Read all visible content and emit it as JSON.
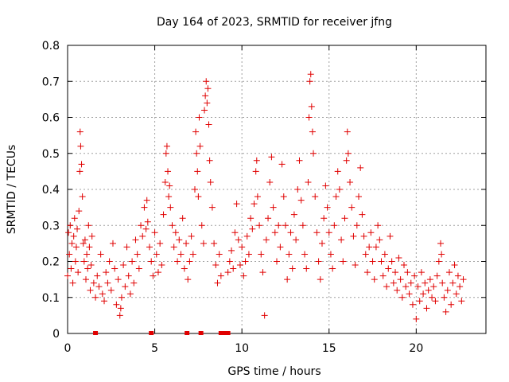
{
  "chart_data": {
    "type": "scatter",
    "title": "Day 164 of 2023, SRMTID for receiver jfng",
    "xlabel": "GPS time / hours",
    "ylabel": "SRMTID / TECUs",
    "xlim": [
      0,
      24
    ],
    "ylim": [
      0,
      0.8
    ],
    "x_ticks": [
      0,
      5,
      10,
      15,
      20
    ],
    "y_ticks": [
      0,
      0.1,
      0.2,
      0.3,
      0.4,
      0.5,
      0.6,
      0.7,
      0.8
    ],
    "grid": true,
    "marker": "+",
    "color": "#e00000",
    "points": [
      [
        0.0,
        0.16
      ],
      [
        0.05,
        0.28
      ],
      [
        0.1,
        0.22
      ],
      [
        0.15,
        0.3
      ],
      [
        0.2,
        0.18
      ],
      [
        0.25,
        0.25
      ],
      [
        0.3,
        0.14
      ],
      [
        0.35,
        0.27
      ],
      [
        0.4,
        0.32
      ],
      [
        0.45,
        0.2
      ],
      [
        0.5,
        0.24
      ],
      [
        0.55,
        0.29
      ],
      [
        0.6,
        0.17
      ],
      [
        0.65,
        0.34
      ],
      [
        0.7,
        0.45
      ],
      [
        0.72,
        0.56
      ],
      [
        0.75,
        0.52
      ],
      [
        0.8,
        0.47
      ],
      [
        0.85,
        0.38
      ],
      [
        0.9,
        0.25
      ],
      [
        0.95,
        0.2
      ],
      [
        1.0,
        0.26
      ],
      [
        1.05,
        0.15
      ],
      [
        1.1,
        0.22
      ],
      [
        1.15,
        0.18
      ],
      [
        1.2,
        0.3
      ],
      [
        1.25,
        0.24
      ],
      [
        1.3,
        0.12
      ],
      [
        1.35,
        0.19
      ],
      [
        1.4,
        0.27
      ],
      [
        1.5,
        0.14
      ],
      [
        1.6,
        0.1
      ],
      [
        1.7,
        0.16
      ],
      [
        1.8,
        0.13
      ],
      [
        1.9,
        0.22
      ],
      [
        2.0,
        0.11
      ],
      [
        2.1,
        0.09
      ],
      [
        2.2,
        0.17
      ],
      [
        2.3,
        0.14
      ],
      [
        2.4,
        0.2
      ],
      [
        2.5,
        0.12
      ],
      [
        2.6,
        0.25
      ],
      [
        2.7,
        0.18
      ],
      [
        2.8,
        0.08
      ],
      [
        2.9,
        0.15
      ],
      [
        3.0,
        0.05
      ],
      [
        3.05,
        0.07
      ],
      [
        3.1,
        0.1
      ],
      [
        3.2,
        0.19
      ],
      [
        3.3,
        0.13
      ],
      [
        3.4,
        0.24
      ],
      [
        3.5,
        0.16
      ],
      [
        3.6,
        0.11
      ],
      [
        3.7,
        0.2
      ],
      [
        3.8,
        0.14
      ],
      [
        3.9,
        0.26
      ],
      [
        4.0,
        0.22
      ],
      [
        4.1,
        0.18
      ],
      [
        4.2,
        0.3
      ],
      [
        4.3,
        0.27
      ],
      [
        4.4,
        0.35
      ],
      [
        4.5,
        0.29
      ],
      [
        4.55,
        0.37
      ],
      [
        4.6,
        0.31
      ],
      [
        4.7,
        0.24
      ],
      [
        4.8,
        0.2
      ],
      [
        4.9,
        0.16
      ],
      [
        5.0,
        0.28
      ],
      [
        5.1,
        0.22
      ],
      [
        5.2,
        0.17
      ],
      [
        5.3,
        0.25
      ],
      [
        5.4,
        0.19
      ],
      [
        5.5,
        0.33
      ],
      [
        5.6,
        0.42
      ],
      [
        5.65,
        0.5
      ],
      [
        5.7,
        0.52
      ],
      [
        5.75,
        0.45
      ],
      [
        5.8,
        0.38
      ],
      [
        5.85,
        0.41
      ],
      [
        5.9,
        0.35
      ],
      [
        6.0,
        0.3
      ],
      [
        6.1,
        0.24
      ],
      [
        6.2,
        0.28
      ],
      [
        6.3,
        0.2
      ],
      [
        6.4,
        0.26
      ],
      [
        6.5,
        0.22
      ],
      [
        6.6,
        0.32
      ],
      [
        6.7,
        0.18
      ],
      [
        6.8,
        0.25
      ],
      [
        6.9,
        0.15
      ],
      [
        7.0,
        0.2
      ],
      [
        7.1,
        0.27
      ],
      [
        7.2,
        0.22
      ],
      [
        7.3,
        0.4
      ],
      [
        7.35,
        0.56
      ],
      [
        7.4,
        0.5
      ],
      [
        7.45,
        0.45
      ],
      [
        7.5,
        0.38
      ],
      [
        7.55,
        0.6
      ],
      [
        7.6,
        0.52
      ],
      [
        7.7,
        0.3
      ],
      [
        7.8,
        0.25
      ],
      [
        7.85,
        0.62
      ],
      [
        7.9,
        0.66
      ],
      [
        7.95,
        0.7
      ],
      [
        8.0,
        0.64
      ],
      [
        8.05,
        0.68
      ],
      [
        8.1,
        0.58
      ],
      [
        8.15,
        0.48
      ],
      [
        8.2,
        0.42
      ],
      [
        8.3,
        0.35
      ],
      [
        8.4,
        0.25
      ],
      [
        8.5,
        0.19
      ],
      [
        8.6,
        0.14
      ],
      [
        8.7,
        0.22
      ],
      [
        8.8,
        0.16
      ],
      [
        9.2,
        0.17
      ],
      [
        9.3,
        0.2
      ],
      [
        9.4,
        0.23
      ],
      [
        9.5,
        0.18
      ],
      [
        9.6,
        0.28
      ],
      [
        9.7,
        0.36
      ],
      [
        9.8,
        0.26
      ],
      [
        9.9,
        0.19
      ],
      [
        10.0,
        0.24
      ],
      [
        10.1,
        0.16
      ],
      [
        10.2,
        0.2
      ],
      [
        10.3,
        0.27
      ],
      [
        10.4,
        0.22
      ],
      [
        10.5,
        0.32
      ],
      [
        10.6,
        0.29
      ],
      [
        10.7,
        0.36
      ],
      [
        10.8,
        0.45
      ],
      [
        10.85,
        0.48
      ],
      [
        10.9,
        0.38
      ],
      [
        11.0,
        0.3
      ],
      [
        11.1,
        0.22
      ],
      [
        11.2,
        0.17
      ],
      [
        11.3,
        0.05
      ],
      [
        11.4,
        0.26
      ],
      [
        11.5,
        0.32
      ],
      [
        11.6,
        0.42
      ],
      [
        11.7,
        0.49
      ],
      [
        11.8,
        0.35
      ],
      [
        11.9,
        0.28
      ],
      [
        12.0,
        0.2
      ],
      [
        12.1,
        0.3
      ],
      [
        12.2,
        0.24
      ],
      [
        12.3,
        0.47
      ],
      [
        12.4,
        0.38
      ],
      [
        12.5,
        0.3
      ],
      [
        12.6,
        0.15
      ],
      [
        12.7,
        0.22
      ],
      [
        12.8,
        0.28
      ],
      [
        12.9,
        0.18
      ],
      [
        13.0,
        0.33
      ],
      [
        13.1,
        0.26
      ],
      [
        13.2,
        0.4
      ],
      [
        13.3,
        0.48
      ],
      [
        13.4,
        0.37
      ],
      [
        13.5,
        0.3
      ],
      [
        13.6,
        0.22
      ],
      [
        13.7,
        0.18
      ],
      [
        13.8,
        0.42
      ],
      [
        13.85,
        0.6
      ],
      [
        13.9,
        0.7
      ],
      [
        13.95,
        0.72
      ],
      [
        14.0,
        0.63
      ],
      [
        14.05,
        0.56
      ],
      [
        14.1,
        0.5
      ],
      [
        14.2,
        0.38
      ],
      [
        14.3,
        0.28
      ],
      [
        14.4,
        0.2
      ],
      [
        14.5,
        0.15
      ],
      [
        14.6,
        0.25
      ],
      [
        14.7,
        0.32
      ],
      [
        14.8,
        0.41
      ],
      [
        14.9,
        0.35
      ],
      [
        15.0,
        0.28
      ],
      [
        15.1,
        0.22
      ],
      [
        15.2,
        0.18
      ],
      [
        15.3,
        0.3
      ],
      [
        15.4,
        0.38
      ],
      [
        15.5,
        0.45
      ],
      [
        15.6,
        0.4
      ],
      [
        15.7,
        0.26
      ],
      [
        15.8,
        0.2
      ],
      [
        15.9,
        0.32
      ],
      [
        16.0,
        0.48
      ],
      [
        16.05,
        0.56
      ],
      [
        16.1,
        0.5
      ],
      [
        16.2,
        0.42
      ],
      [
        16.3,
        0.35
      ],
      [
        16.4,
        0.27
      ],
      [
        16.5,
        0.19
      ],
      [
        16.6,
        0.3
      ],
      [
        16.7,
        0.38
      ],
      [
        16.8,
        0.46
      ],
      [
        16.9,
        0.33
      ],
      [
        17.0,
        0.27
      ],
      [
        17.1,
        0.22
      ],
      [
        17.2,
        0.17
      ],
      [
        17.3,
        0.24
      ],
      [
        17.4,
        0.28
      ],
      [
        17.5,
        0.2
      ],
      [
        17.6,
        0.15
      ],
      [
        17.7,
        0.24
      ],
      [
        17.8,
        0.3
      ],
      [
        17.9,
        0.26
      ],
      [
        18.0,
        0.2
      ],
      [
        18.1,
        0.16
      ],
      [
        18.2,
        0.22
      ],
      [
        18.3,
        0.13
      ],
      [
        18.4,
        0.18
      ],
      [
        18.5,
        0.27
      ],
      [
        18.6,
        0.2
      ],
      [
        18.7,
        0.14
      ],
      [
        18.8,
        0.17
      ],
      [
        18.9,
        0.12
      ],
      [
        19.0,
        0.21
      ],
      [
        19.1,
        0.15
      ],
      [
        19.2,
        0.1
      ],
      [
        19.3,
        0.19
      ],
      [
        19.4,
        0.13
      ],
      [
        19.5,
        0.17
      ],
      [
        19.6,
        0.11
      ],
      [
        19.7,
        0.14
      ],
      [
        19.8,
        0.08
      ],
      [
        19.9,
        0.16
      ],
      [
        20.0,
        0.04
      ],
      [
        20.1,
        0.13
      ],
      [
        20.2,
        0.09
      ],
      [
        20.3,
        0.17
      ],
      [
        20.4,
        0.11
      ],
      [
        20.5,
        0.14
      ],
      [
        20.6,
        0.07
      ],
      [
        20.7,
        0.12
      ],
      [
        20.8,
        0.15
      ],
      [
        20.9,
        0.1
      ],
      [
        21.0,
        0.13
      ],
      [
        21.1,
        0.09
      ],
      [
        21.2,
        0.16
      ],
      [
        21.3,
        0.2
      ],
      [
        21.4,
        0.25
      ],
      [
        21.45,
        0.22
      ],
      [
        21.5,
        0.14
      ],
      [
        21.6,
        0.1
      ],
      [
        21.7,
        0.06
      ],
      [
        21.8,
        0.12
      ],
      [
        21.9,
        0.17
      ],
      [
        22.0,
        0.08
      ],
      [
        22.1,
        0.14
      ],
      [
        22.2,
        0.19
      ],
      [
        22.3,
        0.11
      ],
      [
        22.4,
        0.16
      ],
      [
        22.5,
        0.13
      ],
      [
        22.6,
        0.09
      ],
      [
        22.7,
        0.15
      ]
    ],
    "zero_points": [
      1.6,
      4.8,
      6.85,
      7.65,
      8.8,
      8.9,
      9.0,
      9.1,
      9.2
    ]
  }
}
